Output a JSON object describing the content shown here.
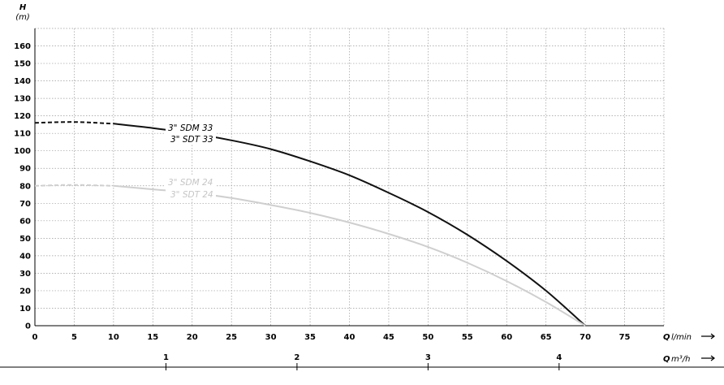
{
  "chart_data": {
    "type": "line",
    "y_axis": {
      "symbol": "H",
      "unit": "(m)",
      "range": [
        0,
        170
      ],
      "ticks": [
        0,
        10,
        20,
        30,
        40,
        50,
        60,
        70,
        80,
        90,
        100,
        110,
        120,
        130,
        140,
        150,
        160
      ]
    },
    "x_axis": {
      "symbol": "Q",
      "unit": "l/min",
      "range": [
        0,
        80
      ],
      "ticks": [
        0,
        5,
        10,
        15,
        20,
        25,
        30,
        35,
        40,
        45,
        50,
        55,
        60,
        65,
        70,
        75
      ]
    },
    "x2_axis": {
      "symbol": "Q",
      "unit": "m³/h",
      "ticks": [
        1,
        2,
        3,
        4
      ]
    },
    "grid": true,
    "series": [
      {
        "name": "3\" SDM 33 / 3\" SDT 33",
        "labels": [
          "3\" SDM 33",
          "3\" SDT 33"
        ],
        "color": "#111111",
        "dashed_until": 10,
        "points": [
          [
            0,
            116
          ],
          [
            5,
            116.5
          ],
          [
            10,
            115.5
          ],
          [
            15,
            113
          ],
          [
            20,
            110
          ],
          [
            25,
            106
          ],
          [
            30,
            101
          ],
          [
            35,
            94
          ],
          [
            40,
            86
          ],
          [
            45,
            76
          ],
          [
            50,
            65
          ],
          [
            55,
            52
          ],
          [
            60,
            37
          ],
          [
            65,
            20
          ],
          [
            70,
            0
          ]
        ]
      },
      {
        "name": "3\" SDM 24 / 3\" SDT 24",
        "labels": [
          "3\" SDM 24",
          "3\" SDT 24"
        ],
        "color": "#cfcfcf",
        "dashed_until": 10,
        "points": [
          [
            0,
            80
          ],
          [
            5,
            80.5
          ],
          [
            10,
            80
          ],
          [
            15,
            78
          ],
          [
            20,
            76
          ],
          [
            25,
            73
          ],
          [
            30,
            69
          ],
          [
            35,
            64.5
          ],
          [
            40,
            59
          ],
          [
            45,
            52.5
          ],
          [
            50,
            45
          ],
          [
            55,
            36
          ],
          [
            60,
            25.5
          ],
          [
            65,
            13.5
          ],
          [
            70,
            0
          ]
        ]
      }
    ]
  }
}
